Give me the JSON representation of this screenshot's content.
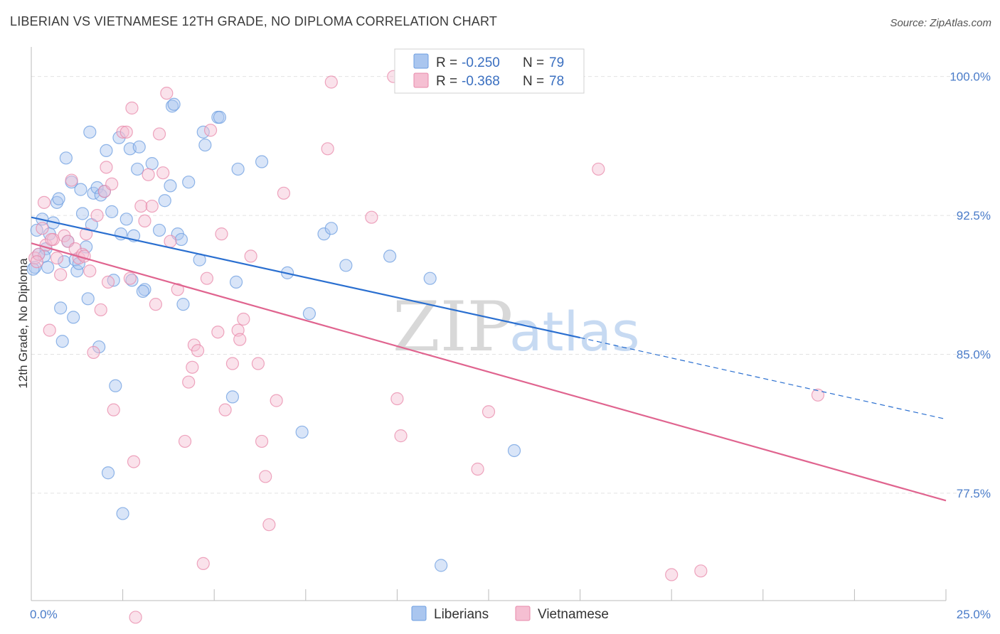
{
  "title": "LIBERIAN VS VIETNAMESE 12TH GRADE, NO DIPLOMA CORRELATION CHART",
  "source": "Source: ZipAtlas.com",
  "watermark": {
    "zip": "ZIP",
    "atlas": "atlas"
  },
  "colors": {
    "liberians": "#6c9de0",
    "liberians_fill": "#aac6ef",
    "vietnamese": "#e888aa",
    "vietnamese_fill": "#f5bfd2",
    "trend_blue": "#2a6fd0",
    "trend_pink": "#e0648f",
    "grid": "#e2e2e2"
  },
  "legend": {
    "rows": [
      {
        "r_label": "R = ",
        "r_value": "-0.250",
        "n_label": "N = ",
        "n_value": "79"
      },
      {
        "r_label": "R = ",
        "r_value": "-0.368",
        "n_label": "N = ",
        "n_value": "78"
      }
    ]
  },
  "chart_data": {
    "type": "scatter",
    "title": "LIBERIAN VS VIETNAMESE 12TH GRADE, NO DIPLOMA CORRELATION CHART",
    "xlabel": "",
    "ylabel": "12th Grade, No Diploma",
    "xlim": [
      0,
      25
    ],
    "ylim": [
      71.7,
      101.6
    ],
    "x_tick_labels": [
      {
        "value": 0,
        "label": "0.0%"
      },
      {
        "value": 25,
        "label": "25.0%"
      }
    ],
    "y_tick_labels": [
      {
        "value": 100,
        "label": "100.0%"
      },
      {
        "value": 92.5,
        "label": "92.5%"
      },
      {
        "value": 85,
        "label": "85.0%"
      },
      {
        "value": 77.5,
        "label": "77.5%"
      }
    ],
    "grid": true,
    "legend_position": "top-center",
    "series": [
      {
        "name": "Liberians",
        "trend": {
          "x0": 0,
          "y0": 92.4,
          "x1": 15,
          "y1": 85.9,
          "dashed_to_x": 25,
          "dashed_to_y": 81.5
        },
        "points": [
          [
            0.1,
            89.7
          ],
          [
            0.15,
            91.7
          ],
          [
            0.2,
            90.4
          ],
          [
            0.3,
            92.3
          ],
          [
            0.4,
            90.7
          ],
          [
            0.45,
            89.7
          ],
          [
            0.5,
            91.5
          ],
          [
            0.6,
            92.1
          ],
          [
            0.7,
            93.2
          ],
          [
            0.75,
            93.4
          ],
          [
            0.8,
            87.5
          ],
          [
            0.85,
            85.7
          ],
          [
            0.9,
            90.0
          ],
          [
            0.95,
            95.6
          ],
          [
            1.0,
            91.1
          ],
          [
            1.1,
            94.3
          ],
          [
            1.15,
            87.0
          ],
          [
            1.2,
            90.1
          ],
          [
            1.25,
            89.5
          ],
          [
            1.35,
            93.9
          ],
          [
            1.4,
            92.6
          ],
          [
            1.5,
            90.8
          ],
          [
            1.55,
            88.0
          ],
          [
            1.6,
            97.0
          ],
          [
            1.65,
            92.0
          ],
          [
            1.7,
            93.7
          ],
          [
            1.8,
            94.0
          ],
          [
            1.85,
            85.4
          ],
          [
            1.9,
            93.6
          ],
          [
            2.0,
            93.8
          ],
          [
            2.05,
            96.0
          ],
          [
            2.1,
            78.6
          ],
          [
            2.2,
            92.7
          ],
          [
            2.25,
            89.0
          ],
          [
            2.3,
            83.3
          ],
          [
            2.4,
            96.7
          ],
          [
            2.45,
            91.5
          ],
          [
            2.5,
            76.4
          ],
          [
            2.6,
            92.3
          ],
          [
            2.7,
            96.1
          ],
          [
            2.75,
            89.0
          ],
          [
            2.8,
            91.4
          ],
          [
            2.9,
            95.0
          ],
          [
            2.95,
            96.2
          ],
          [
            3.1,
            88.5
          ],
          [
            3.3,
            95.3
          ],
          [
            3.5,
            91.7
          ],
          [
            3.65,
            93.3
          ],
          [
            3.8,
            94.1
          ],
          [
            3.85,
            98.4
          ],
          [
            3.9,
            98.5
          ],
          [
            4.0,
            91.5
          ],
          [
            4.1,
            91.2
          ],
          [
            4.15,
            87.7
          ],
          [
            4.3,
            94.3
          ],
          [
            4.6,
            90.1
          ],
          [
            4.7,
            97.0
          ],
          [
            4.75,
            96.3
          ],
          [
            5.1,
            97.8
          ],
          [
            5.15,
            97.8
          ],
          [
            5.5,
            82.7
          ],
          [
            5.6,
            88.9
          ],
          [
            5.65,
            95.0
          ],
          [
            6.3,
            95.4
          ],
          [
            7.0,
            89.4
          ],
          [
            7.4,
            80.8
          ],
          [
            7.6,
            87.2
          ],
          [
            8.0,
            91.5
          ],
          [
            8.2,
            91.8
          ],
          [
            8.6,
            89.8
          ],
          [
            9.8,
            90.3
          ],
          [
            10.9,
            89.1
          ],
          [
            11.2,
            73.6
          ],
          [
            13.2,
            79.8
          ],
          [
            0.05,
            89.6
          ],
          [
            0.35,
            90.3
          ],
          [
            1.3,
            89.9
          ],
          [
            3.05,
            88.4
          ]
        ]
      },
      {
        "name": "Vietnamese",
        "trend": {
          "x0": 0,
          "y0": 91.0,
          "x1": 25,
          "y1": 77.1
        },
        "points": [
          [
            0.1,
            90.2
          ],
          [
            0.2,
            90.4
          ],
          [
            0.3,
            91.8
          ],
          [
            0.35,
            93.2
          ],
          [
            0.4,
            90.9
          ],
          [
            0.5,
            86.3
          ],
          [
            0.6,
            91.2
          ],
          [
            0.7,
            90.2
          ],
          [
            0.8,
            89.3
          ],
          [
            0.9,
            91.4
          ],
          [
            1.0,
            91.1
          ],
          [
            1.1,
            94.4
          ],
          [
            1.2,
            90.7
          ],
          [
            1.3,
            90.2
          ],
          [
            1.4,
            90.4
          ],
          [
            1.5,
            91.5
          ],
          [
            1.6,
            89.5
          ],
          [
            1.7,
            85.1
          ],
          [
            1.8,
            92.5
          ],
          [
            1.9,
            87.4
          ],
          [
            2.0,
            93.8
          ],
          [
            2.05,
            95.1
          ],
          [
            2.1,
            88.9
          ],
          [
            2.2,
            94.2
          ],
          [
            2.25,
            82.0
          ],
          [
            2.5,
            97.0
          ],
          [
            2.6,
            97.0
          ],
          [
            2.7,
            89.1
          ],
          [
            2.75,
            98.3
          ],
          [
            2.8,
            79.2
          ],
          [
            2.85,
            70.8
          ],
          [
            3.0,
            93.0
          ],
          [
            3.1,
            92.2
          ],
          [
            3.2,
            94.7
          ],
          [
            3.3,
            93.0
          ],
          [
            3.4,
            87.7
          ],
          [
            3.5,
            96.9
          ],
          [
            3.6,
            94.8
          ],
          [
            3.7,
            99.1
          ],
          [
            3.8,
            91.1
          ],
          [
            4.0,
            88.5
          ],
          [
            4.2,
            80.3
          ],
          [
            4.3,
            83.5
          ],
          [
            4.4,
            84.3
          ],
          [
            4.45,
            85.5
          ],
          [
            4.55,
            85.2
          ],
          [
            4.7,
            73.7
          ],
          [
            4.8,
            89.1
          ],
          [
            4.9,
            97.1
          ],
          [
            5.1,
            86.2
          ],
          [
            5.2,
            91.5
          ],
          [
            5.3,
            82.0
          ],
          [
            5.5,
            84.5
          ],
          [
            5.65,
            86.3
          ],
          [
            5.7,
            85.8
          ],
          [
            5.8,
            86.9
          ],
          [
            6.0,
            90.3
          ],
          [
            6.2,
            84.5
          ],
          [
            6.3,
            80.3
          ],
          [
            6.4,
            78.4
          ],
          [
            6.5,
            75.8
          ],
          [
            6.7,
            82.5
          ],
          [
            6.9,
            93.7
          ],
          [
            8.1,
            96.1
          ],
          [
            8.2,
            99.7
          ],
          [
            9.3,
            92.4
          ],
          [
            9.9,
            100.0
          ],
          [
            10.0,
            82.6
          ],
          [
            10.1,
            80.6
          ],
          [
            12.2,
            78.8
          ],
          [
            12.5,
            81.9
          ],
          [
            15.5,
            95.0
          ],
          [
            17.5,
            73.1
          ],
          [
            18.3,
            73.3
          ],
          [
            21.5,
            82.8
          ],
          [
            0.15,
            90.0
          ],
          [
            0.55,
            91.2
          ],
          [
            1.45,
            90.3
          ]
        ]
      }
    ]
  },
  "bottom_legend": [
    {
      "label": "Liberians"
    },
    {
      "label": "Vietnamese"
    }
  ]
}
